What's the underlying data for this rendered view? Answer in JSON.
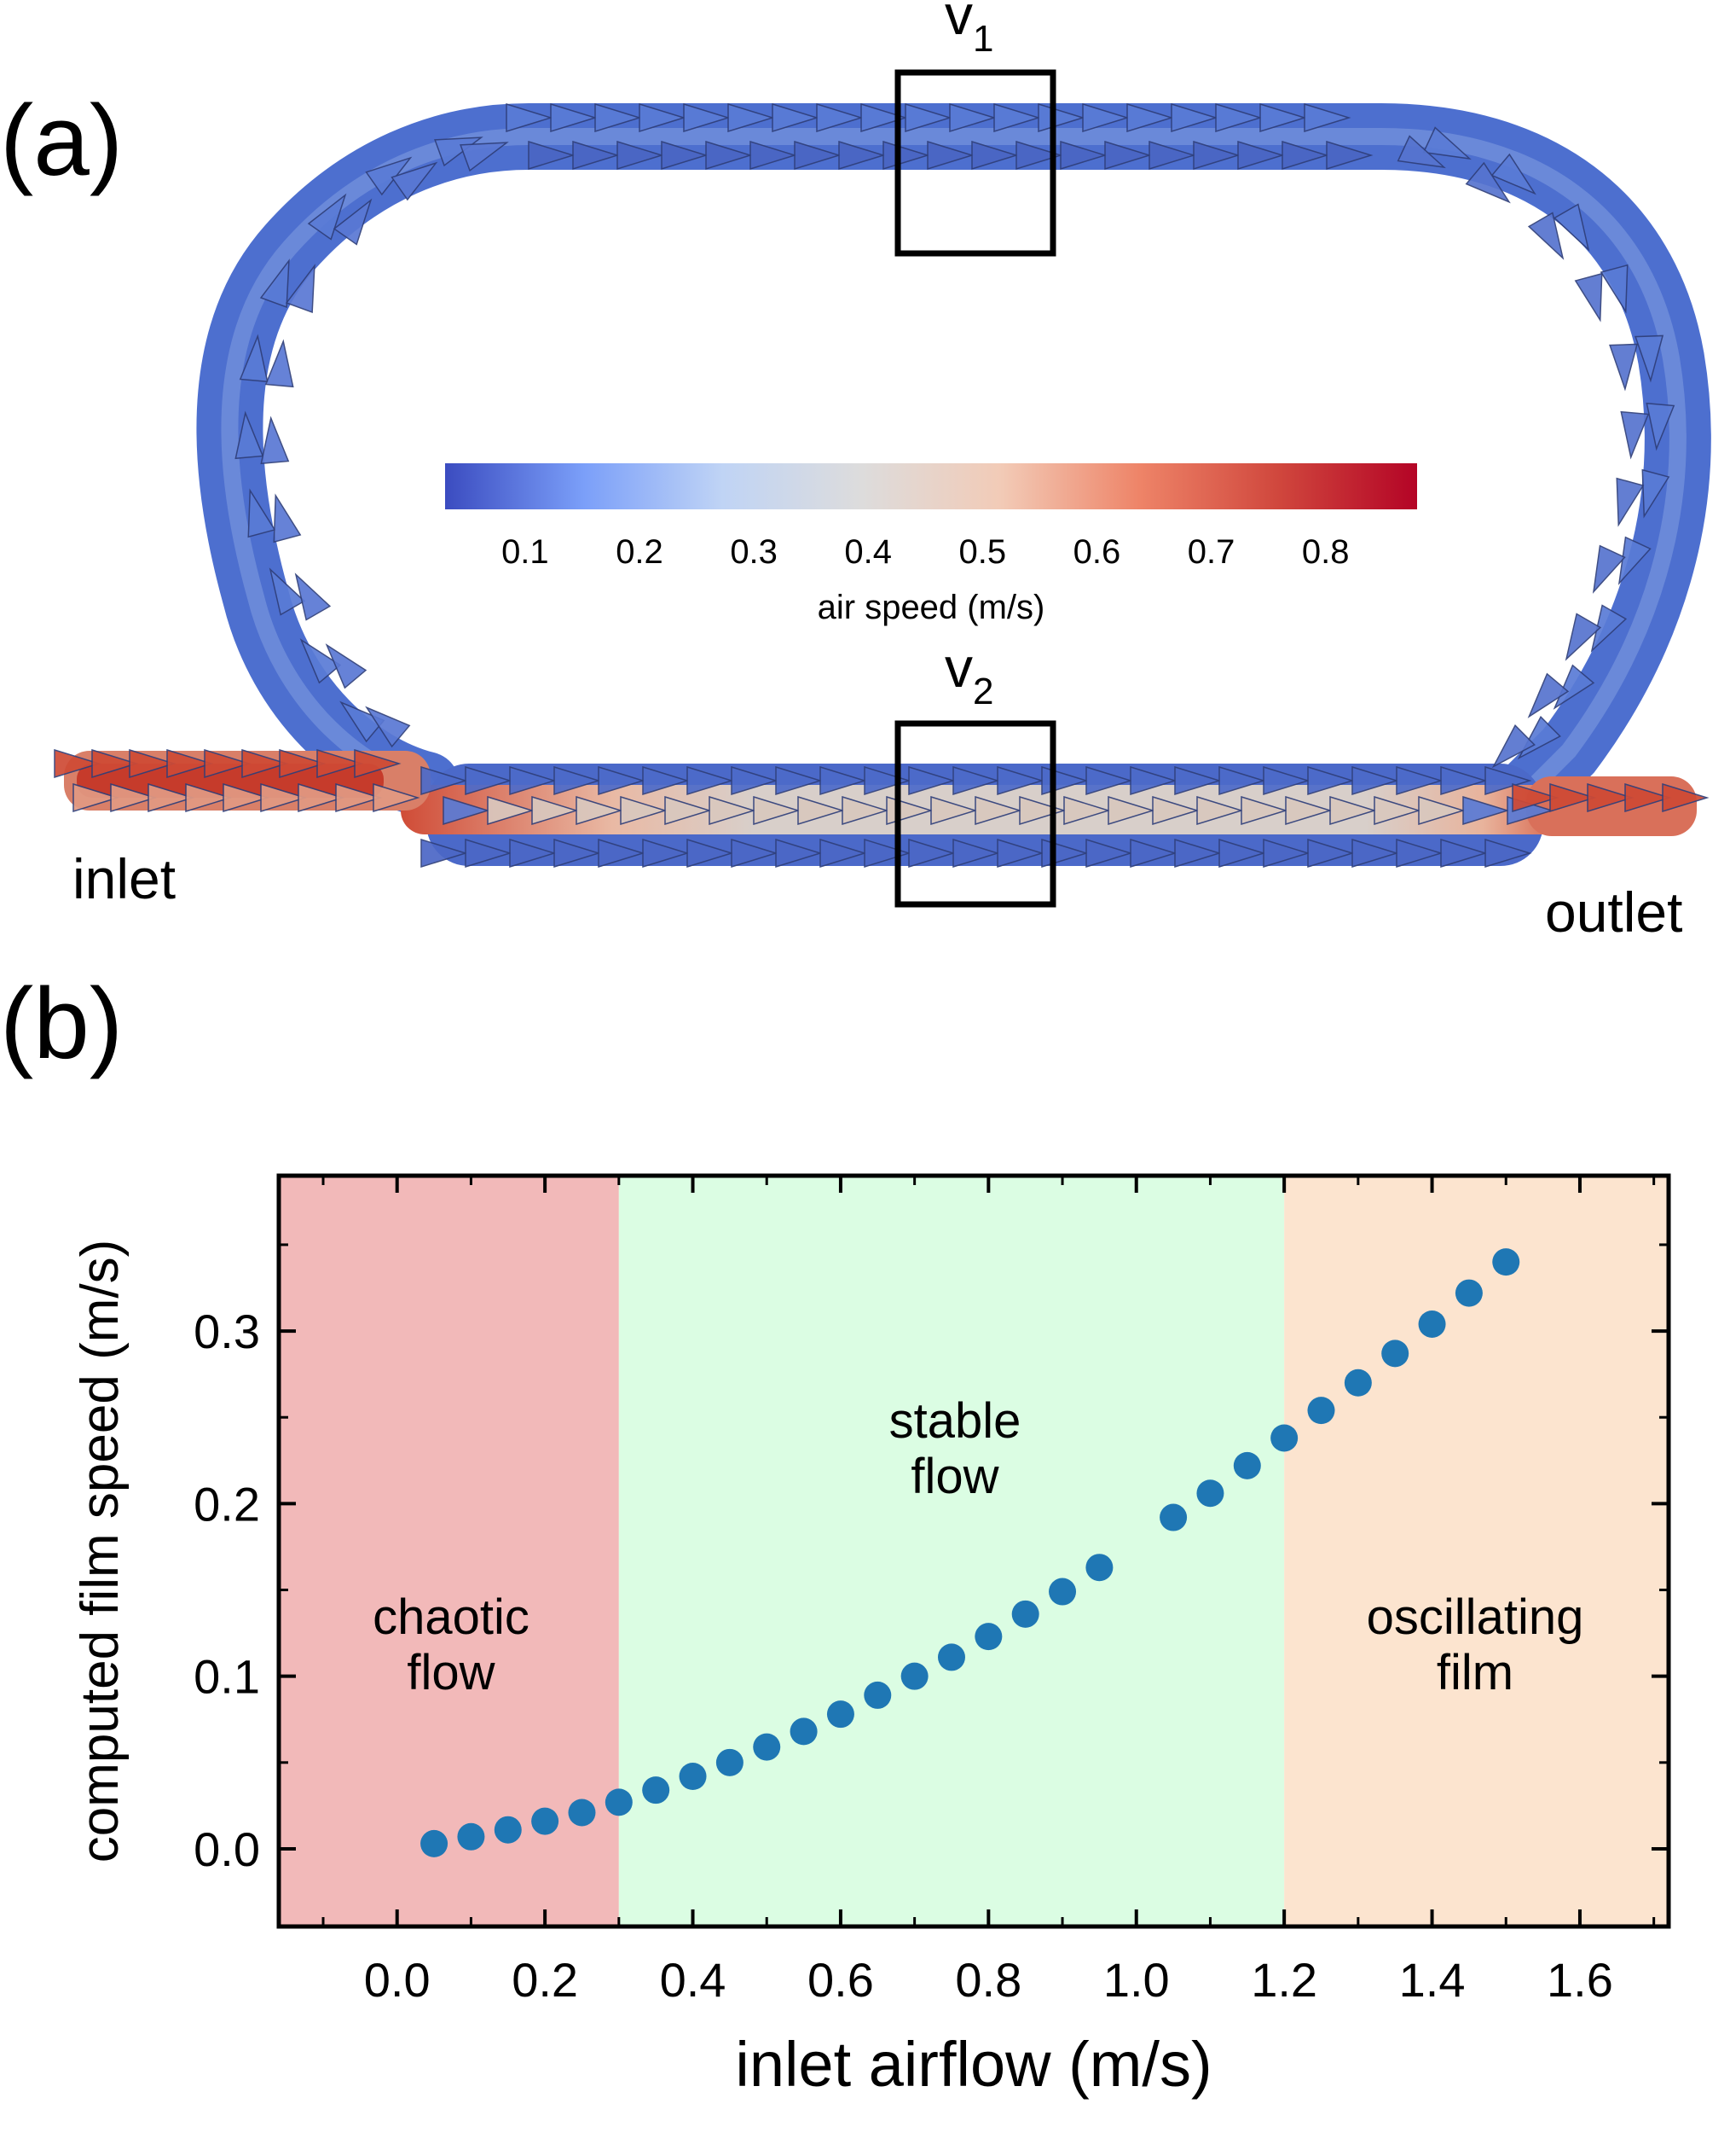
{
  "panel_a": {
    "label": "(a)",
    "box_top_label": "v",
    "box_top_sub": "1",
    "box_bottom_label": "v",
    "box_bottom_sub": "2",
    "inlet_label": "inlet",
    "outlet_label": "outlet",
    "colorbar": {
      "title": "air speed (m/s)",
      "ticks": [
        "0.1",
        "0.2",
        "0.3",
        "0.4",
        "0.5",
        "0.6",
        "0.7",
        "0.8"
      ],
      "tick_values": [
        0.1,
        0.2,
        0.3,
        0.4,
        0.5,
        0.6,
        0.7,
        0.8
      ],
      "range": [
        0.03,
        0.88
      ],
      "colors": [
        "#3b4cc0",
        "#7b9ff9",
        "#c0d4f5",
        "#dddcdc",
        "#f2cbb7",
        "#ee8468",
        "#d0473d",
        "#b40426"
      ]
    },
    "arrow_colors": {
      "low": "#5a7bd6",
      "mid": "#d9c8be",
      "high": "#cf4a35"
    }
  },
  "panel_b": {
    "label": "(b)",
    "regions": [
      {
        "label_line1": "chaotic",
        "label_line2": "flow",
        "x_start": -0.16,
        "x_end": 0.3,
        "color": "#f2b9b9"
      },
      {
        "label_line1": "stable",
        "label_line2": "flow",
        "x_start": 0.3,
        "x_end": 1.2,
        "color": "#dbfde3"
      },
      {
        "label_line1": "oscillating",
        "label_line2": "film",
        "x_start": 1.2,
        "x_end": 1.72,
        "color": "#fce4cf"
      }
    ],
    "marker_color": "#1f77b4"
  },
  "chart_data": {
    "type": "scatter",
    "xlabel": "inlet airflow (m/s)",
    "ylabel": "computed film speed (m/s)",
    "xlim": [
      -0.16,
      1.72
    ],
    "ylim": [
      -0.045,
      0.39
    ],
    "x_ticks": [
      "0.0",
      "0.2",
      "0.4",
      "0.6",
      "0.8",
      "1.0",
      "1.2",
      "1.4",
      "1.6"
    ],
    "x_tick_values": [
      0.0,
      0.2,
      0.4,
      0.6,
      0.8,
      1.0,
      1.2,
      1.4,
      1.6
    ],
    "y_ticks": [
      "0.0",
      "0.1",
      "0.2",
      "0.3"
    ],
    "y_tick_values": [
      0.0,
      0.1,
      0.2,
      0.3
    ],
    "grid": false,
    "series": [
      {
        "x": [
          0.05,
          0.1,
          0.15,
          0.2,
          0.25,
          0.3,
          0.35,
          0.4,
          0.45,
          0.5,
          0.55,
          0.6,
          0.65,
          0.7,
          0.75,
          0.8,
          0.85,
          0.9,
          0.95,
          1.05,
          1.1,
          1.15,
          1.2,
          1.25,
          1.3,
          1.35,
          1.4,
          1.45,
          1.5
        ],
        "y": [
          0.003,
          0.007,
          0.011,
          0.016,
          0.021,
          0.027,
          0.034,
          0.042,
          0.05,
          0.059,
          0.068,
          0.078,
          0.089,
          0.1,
          0.111,
          0.123,
          0.136,
          0.149,
          0.163,
          0.192,
          0.206,
          0.222,
          0.238,
          0.254,
          0.27,
          0.287,
          0.304,
          0.322,
          0.34
        ]
      }
    ]
  }
}
